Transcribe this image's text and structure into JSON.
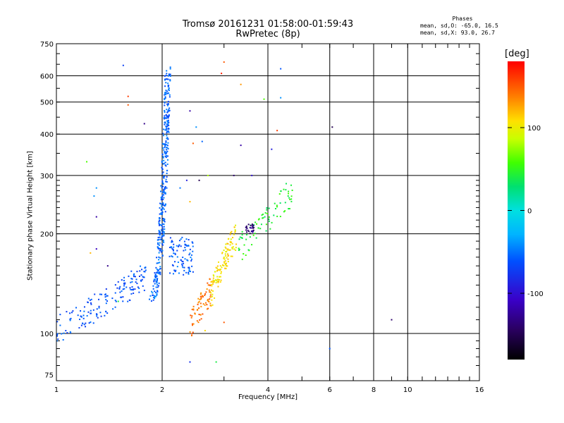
{
  "title": {
    "line1": "Tromsø 20161231 01:58:00-01:59:43",
    "line2": "RwPretec (8p)"
  },
  "stats": {
    "heading": "Phases",
    "line1": "mean, sd,O: -65.0, 16.5",
    "line2": "mean, sd,X:  93.0, 26.7"
  },
  "colorbar": {
    "unit": "[deg]",
    "min": -180,
    "max": 180,
    "ticks": [
      100,
      0,
      -100
    ],
    "tick_labels": [
      "100",
      "0",
      "-100"
    ]
  },
  "chart_data": {
    "type": "scatter",
    "xlabel": "Frequency [MHz]",
    "ylabel": "Stationary phase Virtual Height [km]",
    "x_scale": "log",
    "y_scale": "log",
    "xlim": [
      1,
      16
    ],
    "ylim": [
      72,
      750
    ],
    "x_ticks": [
      1,
      2,
      4,
      6,
      8,
      10,
      16
    ],
    "x_tick_labels": [
      "1",
      "2",
      "4",
      "6",
      "8",
      "10",
      "16"
    ],
    "y_ticks": [
      75,
      100,
      200,
      300,
      400,
      500,
      600,
      750
    ],
    "y_tick_labels": [
      "75",
      "100",
      "200",
      "300",
      "400",
      "500",
      "600",
      "750"
    ],
    "grid": true,
    "clusters": [
      {
        "name": "low-E trace",
        "freq_range": [
          1.0,
          1.8
        ],
        "height_range": [
          103,
          150
        ],
        "phase_deg": -62,
        "count": 160
      },
      {
        "name": "vertical spread",
        "freq_range": [
          1.8,
          2.08
        ],
        "height_range": [
          125,
          640
        ],
        "phase_deg": -55,
        "count": 380
      },
      {
        "name": "side cluster",
        "freq_range": [
          2.1,
          2.45
        ],
        "height_range": [
          150,
          195
        ],
        "phase_deg": -58,
        "count": 90
      },
      {
        "name": "orange trace",
        "freq_range": [
          2.4,
          2.75
        ],
        "height_range": [
          105,
          135
        ],
        "phase_deg": 140,
        "count": 70
      },
      {
        "name": "yellow trace",
        "freq_range": [
          2.75,
          3.25
        ],
        "height_range": [
          130,
          200
        ],
        "phase_deg": 105,
        "count": 120
      },
      {
        "name": "green trace",
        "freq_range": [
          3.3,
          4.7
        ],
        "height_range": [
          180,
          270
        ],
        "phase_deg": 45,
        "count": 80
      },
      {
        "name": "purple cluster",
        "freq_range": [
          3.45,
          3.65
        ],
        "height_range": [
          200,
          215
        ],
        "phase_deg": -135,
        "count": 25
      }
    ],
    "outliers": [
      {
        "x": 1.55,
        "y": 645,
        "phase": -70
      },
      {
        "x": 1.6,
        "y": 520,
        "phase": 160
      },
      {
        "x": 1.6,
        "y": 490,
        "phase": 150
      },
      {
        "x": 1.78,
        "y": 430,
        "phase": -130
      },
      {
        "x": 1.3,
        "y": 275,
        "phase": -40
      },
      {
        "x": 1.28,
        "y": 260,
        "phase": -40
      },
      {
        "x": 1.22,
        "y": 330,
        "phase": 60
      },
      {
        "x": 1.3,
        "y": 225,
        "phase": -120
      },
      {
        "x": 1.3,
        "y": 180,
        "phase": -110
      },
      {
        "x": 1.25,
        "y": 175,
        "phase": 120
      },
      {
        "x": 1.4,
        "y": 160,
        "phase": -130
      },
      {
        "x": 1.5,
        "y": 125,
        "phase": 40
      },
      {
        "x": 2.4,
        "y": 470,
        "phase": -120
      },
      {
        "x": 2.5,
        "y": 420,
        "phase": -40
      },
      {
        "x": 2.45,
        "y": 375,
        "phase": 150
      },
      {
        "x": 2.6,
        "y": 380,
        "phase": -55
      },
      {
        "x": 2.25,
        "y": 275,
        "phase": -50
      },
      {
        "x": 2.35,
        "y": 290,
        "phase": -90
      },
      {
        "x": 2.55,
        "y": 290,
        "phase": -150
      },
      {
        "x": 2.4,
        "y": 250,
        "phase": 120
      },
      {
        "x": 3.0,
        "y": 660,
        "phase": 150
      },
      {
        "x": 2.95,
        "y": 610,
        "phase": 170
      },
      {
        "x": 3.35,
        "y": 565,
        "phase": 130
      },
      {
        "x": 3.35,
        "y": 370,
        "phase": -120
      },
      {
        "x": 3.9,
        "y": 510,
        "phase": 60
      },
      {
        "x": 4.35,
        "y": 630,
        "phase": -60
      },
      {
        "x": 4.35,
        "y": 515,
        "phase": -40
      },
      {
        "x": 4.1,
        "y": 360,
        "phase": -90
      },
      {
        "x": 4.25,
        "y": 410,
        "phase": 160
      },
      {
        "x": 6.1,
        "y": 420,
        "phase": -150
      },
      {
        "x": 6.0,
        "y": 90,
        "phase": -60
      },
      {
        "x": 9.0,
        "y": 110,
        "phase": -140
      },
      {
        "x": 2.4,
        "y": 82,
        "phase": -80
      },
      {
        "x": 2.85,
        "y": 82,
        "phase": 40
      },
      {
        "x": 2.65,
        "y": 102,
        "phase": 110
      },
      {
        "x": 3.0,
        "y": 108,
        "phase": 150
      },
      {
        "x": 2.7,
        "y": 300,
        "phase": 80
      },
      {
        "x": 3.2,
        "y": 300,
        "phase": -140
      },
      {
        "x": 3.6,
        "y": 300,
        "phase": -100
      }
    ]
  }
}
